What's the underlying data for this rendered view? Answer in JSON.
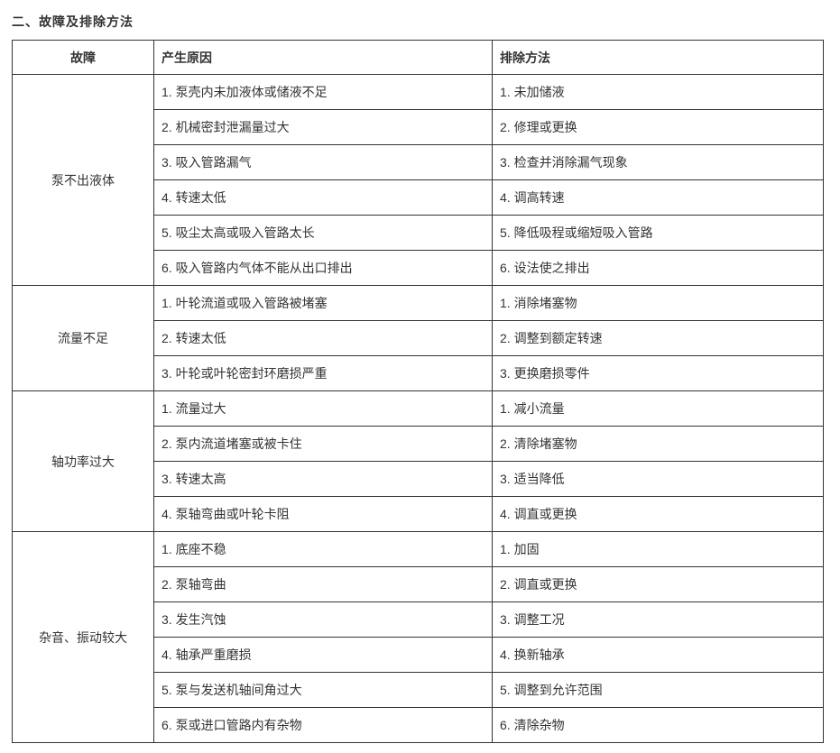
{
  "page": {
    "title": "二、故障及排除方法"
  },
  "colors": {
    "text": "#333333",
    "border": "#333333",
    "background": "#ffffff"
  },
  "table": {
    "headers": [
      "故障",
      "产生原因",
      "排除方法"
    ],
    "groups": [
      {
        "fault": "泵不出液体",
        "rows": [
          {
            "cause": "1. 泵壳内未加液体或储液不足",
            "solution": "1. 未加储液"
          },
          {
            "cause": "2. 机械密封泄漏量过大",
            "solution": "2. 修理或更换"
          },
          {
            "cause": "3. 吸入管路漏气",
            "solution": "3. 检查并消除漏气现象"
          },
          {
            "cause": "4. 转速太低",
            "solution": "4. 调高转速"
          },
          {
            "cause": "5. 吸尘太高或吸入管路太长",
            "solution": "5. 降低吸程或缩短吸入管路"
          },
          {
            "cause": "6. 吸入管路内气体不能从出口排出",
            "solution": "6. 设法使之排出"
          }
        ]
      },
      {
        "fault": "流量不足",
        "rows": [
          {
            "cause": "1. 叶轮流道或吸入管路被堵塞",
            "solution": "1. 消除堵塞物"
          },
          {
            "cause": "2. 转速太低",
            "solution": "2. 调整到额定转速"
          },
          {
            "cause": "3. 叶轮或叶轮密封环磨损严重",
            "solution": "3. 更换磨损零件"
          }
        ]
      },
      {
        "fault": "轴功率过大",
        "rows": [
          {
            "cause": "1. 流量过大",
            "solution": "1. 减小流量"
          },
          {
            "cause": "2. 泵内流道堵塞或被卡住",
            "solution": "2. 清除堵塞物"
          },
          {
            "cause": "3. 转速太高",
            "solution": "3. 适当降低"
          },
          {
            "cause": "4. 泵轴弯曲或叶轮卡阻",
            "solution": "4. 调直或更换"
          }
        ]
      },
      {
        "fault": "杂音、振动较大",
        "rows": [
          {
            "cause": "1. 底座不稳",
            "solution": "1. 加固"
          },
          {
            "cause": "2. 泵轴弯曲",
            "solution": "2. 调直或更换"
          },
          {
            "cause": "3. 发生汽蚀",
            "solution": "3. 调整工况"
          },
          {
            "cause": "4. 轴承严重磨损",
            "solution": "4. 换新轴承"
          },
          {
            "cause": "5. 泵与发送机轴间角过大",
            "solution": "5. 调整到允许范围"
          },
          {
            "cause": "6. 泵或进口管路内有杂物",
            "solution": "6. 清除杂物"
          }
        ]
      }
    ]
  }
}
